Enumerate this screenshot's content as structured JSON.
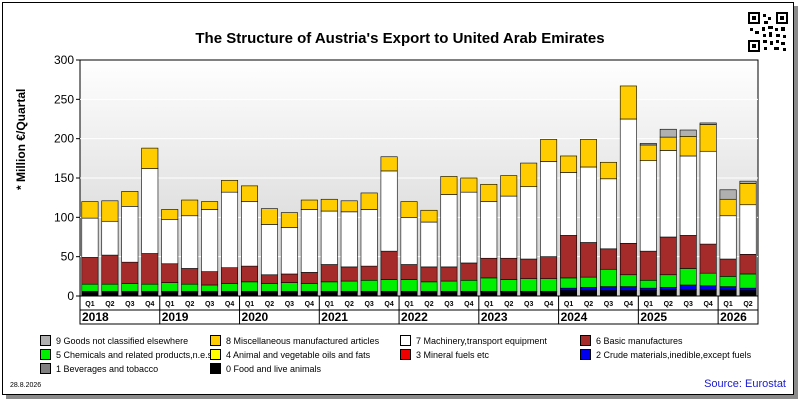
{
  "header": {
    "title": "The Structure of Austria's Export to United Arab Emirates",
    "ylabel": "* Million €/Quartal"
  },
  "footer": {
    "date": "28.8.2026",
    "source": "Source: Eurostat"
  },
  "chart_data": {
    "type": "bar",
    "stacked": true,
    "title": "The Structure of Austria's Export to United Arab Emirates",
    "ylabel": "* Million €/Quartal",
    "ylim": [
      0,
      300
    ],
    "yticks": [
      0,
      50,
      100,
      150,
      200,
      250,
      300
    ],
    "grid": true,
    "legend_position": "bottom",
    "quarters": [
      "Q1",
      "Q2",
      "Q3",
      "Q4",
      "Q1",
      "Q2",
      "Q3",
      "Q4",
      "Q1",
      "Q2",
      "Q3",
      "Q4",
      "Q1",
      "Q2",
      "Q3",
      "Q4",
      "Q1",
      "Q2",
      "Q3",
      "Q4",
      "Q1",
      "Q2",
      "Q3",
      "Q4",
      "Q1",
      "Q2",
      "Q3",
      "Q4",
      "Q1",
      "Q2",
      "Q3",
      "Q4",
      "Q1",
      "Q2"
    ],
    "years": [
      "2018",
      "2019",
      "2020",
      "2021",
      "2022",
      "2023",
      "2024",
      "2025",
      "2026"
    ],
    "series": [
      {
        "name": "0 Food and live animals",
        "color": "#000000",
        "values": [
          5,
          5,
          5,
          5,
          5,
          5,
          5,
          5,
          5,
          5,
          5,
          5,
          5,
          5,
          5,
          5,
          5,
          5,
          5,
          5,
          5,
          5,
          5,
          5,
          7,
          7,
          7,
          7,
          7,
          8,
          8,
          8,
          8,
          7
        ]
      },
      {
        "name": "1 Beverages and tobacco",
        "color": "#808080",
        "values": [
          0,
          0,
          0,
          0,
          0,
          0,
          0,
          0,
          0,
          0,
          0,
          0,
          0,
          0,
          0,
          0,
          0,
          0,
          0,
          0,
          0,
          0,
          0,
          0,
          0,
          0,
          0,
          0,
          0,
          0,
          0,
          0,
          0,
          0
        ]
      },
      {
        "name": "2 Crude materials,inedible,except fuels",
        "color": "#0000ee",
        "values": [
          1,
          1,
          1,
          1,
          1,
          1,
          1,
          1,
          1,
          1,
          1,
          1,
          1,
          1,
          1,
          1,
          1,
          1,
          1,
          1,
          1,
          1,
          1,
          1,
          3,
          4,
          5,
          5,
          3,
          3,
          6,
          5,
          4,
          3
        ]
      },
      {
        "name": "3 Mineral fuels etc",
        "color": "#ee0000",
        "values": [
          0,
          0,
          0,
          0,
          0,
          0,
          0,
          0,
          0,
          0,
          0,
          0,
          0,
          0,
          0,
          0,
          0,
          0,
          0,
          0,
          0,
          0,
          0,
          0,
          0,
          0,
          0,
          0,
          0,
          0,
          0,
          0,
          0,
          0
        ]
      },
      {
        "name": "4 Animal and vegetable oils and fats",
        "color": "#ffff00",
        "values": [
          0,
          0,
          0,
          0,
          0,
          0,
          0,
          0,
          0,
          0,
          0,
          0,
          0,
          0,
          0,
          0,
          0,
          0,
          0,
          0,
          0,
          0,
          0,
          0,
          0,
          0,
          0,
          0,
          0,
          0,
          0,
          0,
          0,
          0
        ]
      },
      {
        "name": "5 Chemicals and related products,n.e.s.",
        "color": "#00ee00",
        "values": [
          9,
          9,
          10,
          9,
          11,
          9,
          8,
          10,
          12,
          10,
          11,
          10,
          12,
          13,
          14,
          15,
          15,
          12,
          13,
          14,
          17,
          15,
          16,
          16,
          13,
          13,
          22,
          15,
          10,
          16,
          21,
          16,
          13,
          18
        ]
      },
      {
        "name": "6 Basic manufactures",
        "color": "#a52a2a",
        "values": [
          34,
          37,
          27,
          39,
          24,
          20,
          17,
          20,
          20,
          11,
          11,
          14,
          22,
          18,
          18,
          36,
          19,
          19,
          18,
          22,
          25,
          27,
          25,
          28,
          54,
          44,
          26,
          40,
          37,
          48,
          42,
          37,
          22,
          25
        ]
      },
      {
        "name": "7 Machinery,transport equipment",
        "color": "#ffffff",
        "values": [
          50,
          43,
          71,
          108,
          56,
          67,
          79,
          96,
          82,
          64,
          59,
          80,
          68,
          70,
          72,
          102,
          60,
          57,
          92,
          90,
          72,
          79,
          92,
          121,
          80,
          96,
          89,
          158,
          115,
          110,
          101,
          118,
          55,
          63
        ]
      },
      {
        "name": "8 Miscellaneous manufactured articles",
        "color": "#ffcc00",
        "values": [
          21,
          26,
          19,
          26,
          13,
          20,
          10,
          15,
          20,
          20,
          19,
          12,
          15,
          14,
          21,
          18,
          20,
          15,
          23,
          18,
          22,
          26,
          30,
          28,
          21,
          35,
          21,
          42,
          20,
          17,
          25,
          34,
          21,
          27
        ]
      },
      {
        "name": "9 Goods not classified elsewhere",
        "color": "#b0b0b0",
        "values": [
          0,
          0,
          0,
          0,
          0,
          0,
          0,
          0,
          0,
          0,
          0,
          0,
          0,
          0,
          0,
          0,
          0,
          0,
          0,
          0,
          0,
          0,
          0,
          0,
          0,
          0,
          0,
          0,
          2,
          10,
          8,
          2,
          12,
          3
        ]
      }
    ]
  }
}
